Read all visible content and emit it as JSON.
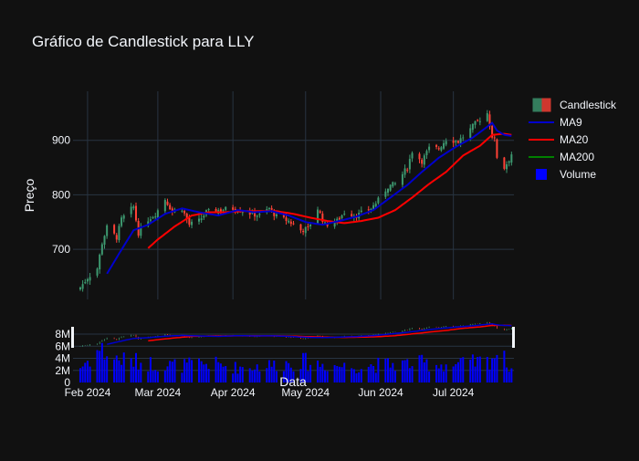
{
  "chart_data": {
    "type": "candlestick",
    "title": "Gráfico de Candlestick para LLY",
    "xlabel": "Data",
    "ylabel": "Preço",
    "price_yticks": [
      700,
      800,
      900
    ],
    "price_ylim": [
      608,
      990
    ],
    "volume_yticks": [
      "0",
      "2M",
      "4M",
      "6M",
      "8M"
    ],
    "volume_ylim": [
      0,
      9000000
    ],
    "x_range": [
      "2024-01-26",
      "2024-07-26"
    ],
    "x_ticks": [
      {
        "date": "2024-02-01",
        "label": "Feb 2024"
      },
      {
        "date": "2024-03-01",
        "label": "Mar 2024"
      },
      {
        "date": "2024-04-01",
        "label": "Apr 2024"
      },
      {
        "date": "2024-05-01",
        "label": "May 2024"
      },
      {
        "date": "2024-06-01",
        "label": "Jun 2024"
      },
      {
        "date": "2024-07-01",
        "label": "Jul 2024"
      }
    ],
    "colors": {
      "increasing": "#3D9970",
      "decreasing": "#FF4136",
      "ma9": "#0000CD",
      "ma20": "#FF0000",
      "ma200": "#008000",
      "volume": "#0000FF"
    },
    "legend": [
      {
        "name": "Candlestick",
        "key": "candlestick"
      },
      {
        "name": "MA9",
        "key": "ma9"
      },
      {
        "name": "MA20",
        "key": "ma20"
      },
      {
        "name": "MA200",
        "key": "ma200"
      },
      {
        "name": "Volume",
        "key": "volume"
      }
    ],
    "legend_position": "top-right",
    "grid": true,
    "close_anchors": [
      [
        "2024-01-29",
        630
      ],
      [
        "2024-02-01",
        648
      ],
      [
        "2024-02-05",
        665
      ],
      [
        "2024-02-07",
        712
      ],
      [
        "2024-02-09",
        740
      ],
      [
        "2024-02-13",
        722
      ],
      [
        "2024-02-15",
        755
      ],
      [
        "2024-02-20",
        778
      ],
      [
        "2024-02-22",
        730
      ],
      [
        "2024-02-26",
        755
      ],
      [
        "2024-02-29",
        765
      ],
      [
        "2024-03-04",
        792
      ],
      [
        "2024-03-07",
        770
      ],
      [
        "2024-03-11",
        775
      ],
      [
        "2024-03-14",
        745
      ],
      [
        "2024-03-18",
        752
      ],
      [
        "2024-03-21",
        768
      ],
      [
        "2024-03-26",
        772
      ],
      [
        "2024-04-01",
        775
      ],
      [
        "2024-04-04",
        772
      ],
      [
        "2024-04-09",
        765
      ],
      [
        "2024-04-12",
        762
      ],
      [
        "2024-04-16",
        775
      ],
      [
        "2024-04-19",
        760
      ],
      [
        "2024-04-24",
        752
      ],
      [
        "2024-04-29",
        735
      ],
      [
        "2024-05-02",
        738
      ],
      [
        "2024-05-06",
        775
      ],
      [
        "2024-05-09",
        745
      ],
      [
        "2024-05-14",
        752
      ],
      [
        "2024-05-17",
        768
      ],
      [
        "2024-05-22",
        762
      ],
      [
        "2024-05-28",
        775
      ],
      [
        "2024-05-31",
        790
      ],
      [
        "2024-06-04",
        815
      ],
      [
        "2024-06-07",
        820
      ],
      [
        "2024-06-12",
        850
      ],
      [
        "2024-06-14",
        880
      ],
      [
        "2024-06-18",
        862
      ],
      [
        "2024-06-21",
        885
      ],
      [
        "2024-06-25",
        885
      ],
      [
        "2024-06-28",
        902
      ],
      [
        "2024-07-03",
        898
      ],
      [
        "2024-07-08",
        920
      ],
      [
        "2024-07-11",
        935
      ],
      [
        "2024-07-15",
        950
      ],
      [
        "2024-07-17",
        908
      ],
      [
        "2024-07-18",
        900
      ],
      [
        "2024-07-19",
        870
      ],
      [
        "2024-07-22",
        850
      ],
      [
        "2024-07-24",
        865
      ],
      [
        "2024-07-25",
        875
      ]
    ],
    "ma9_anchors": [
      [
        "2024-02-09",
        655
      ],
      [
        "2024-02-14",
        692
      ],
      [
        "2024-02-20",
        735
      ],
      [
        "2024-02-26",
        745
      ],
      [
        "2024-03-04",
        765
      ],
      [
        "2024-03-11",
        775
      ],
      [
        "2024-03-18",
        768
      ],
      [
        "2024-03-26",
        762
      ],
      [
        "2024-04-03",
        772
      ],
      [
        "2024-04-10",
        768
      ],
      [
        "2024-04-17",
        770
      ],
      [
        "2024-04-24",
        762
      ],
      [
        "2024-05-01",
        750
      ],
      [
        "2024-05-08",
        745
      ],
      [
        "2024-05-15",
        752
      ],
      [
        "2024-05-22",
        760
      ],
      [
        "2024-05-29",
        772
      ],
      [
        "2024-06-05",
        795
      ],
      [
        "2024-06-12",
        818
      ],
      [
        "2024-06-18",
        842
      ],
      [
        "2024-06-25",
        868
      ],
      [
        "2024-07-02",
        888
      ],
      [
        "2024-07-09",
        905
      ],
      [
        "2024-07-15",
        925
      ],
      [
        "2024-07-17",
        932
      ],
      [
        "2024-07-19",
        918
      ],
      [
        "2024-07-22",
        910
      ],
      [
        "2024-07-25",
        908
      ]
    ],
    "ma20_anchors": [
      [
        "2024-02-26",
        702
      ],
      [
        "2024-03-01",
        718
      ],
      [
        "2024-03-08",
        742
      ],
      [
        "2024-03-15",
        762
      ],
      [
        "2024-03-22",
        768
      ],
      [
        "2024-03-29",
        768
      ],
      [
        "2024-04-05",
        770
      ],
      [
        "2024-04-12",
        770
      ],
      [
        "2024-04-19",
        770
      ],
      [
        "2024-04-26",
        765
      ],
      [
        "2024-05-03",
        758
      ],
      [
        "2024-05-10",
        752
      ],
      [
        "2024-05-17",
        748
      ],
      [
        "2024-05-24",
        752
      ],
      [
        "2024-05-31",
        758
      ],
      [
        "2024-06-07",
        772
      ],
      [
        "2024-06-14",
        795
      ],
      [
        "2024-06-21",
        820
      ],
      [
        "2024-06-28",
        842
      ],
      [
        "2024-07-05",
        872
      ],
      [
        "2024-07-12",
        890
      ],
      [
        "2024-07-17",
        910
      ],
      [
        "2024-07-22",
        912
      ],
      [
        "2024-07-25",
        910
      ]
    ],
    "volume_anchors": [
      [
        "2024-01-29",
        2.5
      ],
      [
        "2024-02-06",
        5.5
      ],
      [
        "2024-02-12",
        4.0
      ],
      [
        "2024-02-20",
        3.5
      ],
      [
        "2024-03-01",
        3.0
      ],
      [
        "2024-03-11",
        2.8
      ],
      [
        "2024-03-22",
        3.2
      ],
      [
        "2024-04-02",
        2.5
      ],
      [
        "2024-04-15",
        2.8
      ],
      [
        "2024-04-29",
        3.5
      ],
      [
        "2024-05-08",
        3.0
      ],
      [
        "2024-05-20",
        2.6
      ],
      [
        "2024-06-03",
        3.0
      ],
      [
        "2024-06-17",
        3.2
      ],
      [
        "2024-07-01",
        2.9
      ],
      [
        "2024-07-15",
        3.5
      ],
      [
        "2024-07-19",
        5.0
      ],
      [
        "2024-07-25",
        2.5
      ]
    ]
  }
}
